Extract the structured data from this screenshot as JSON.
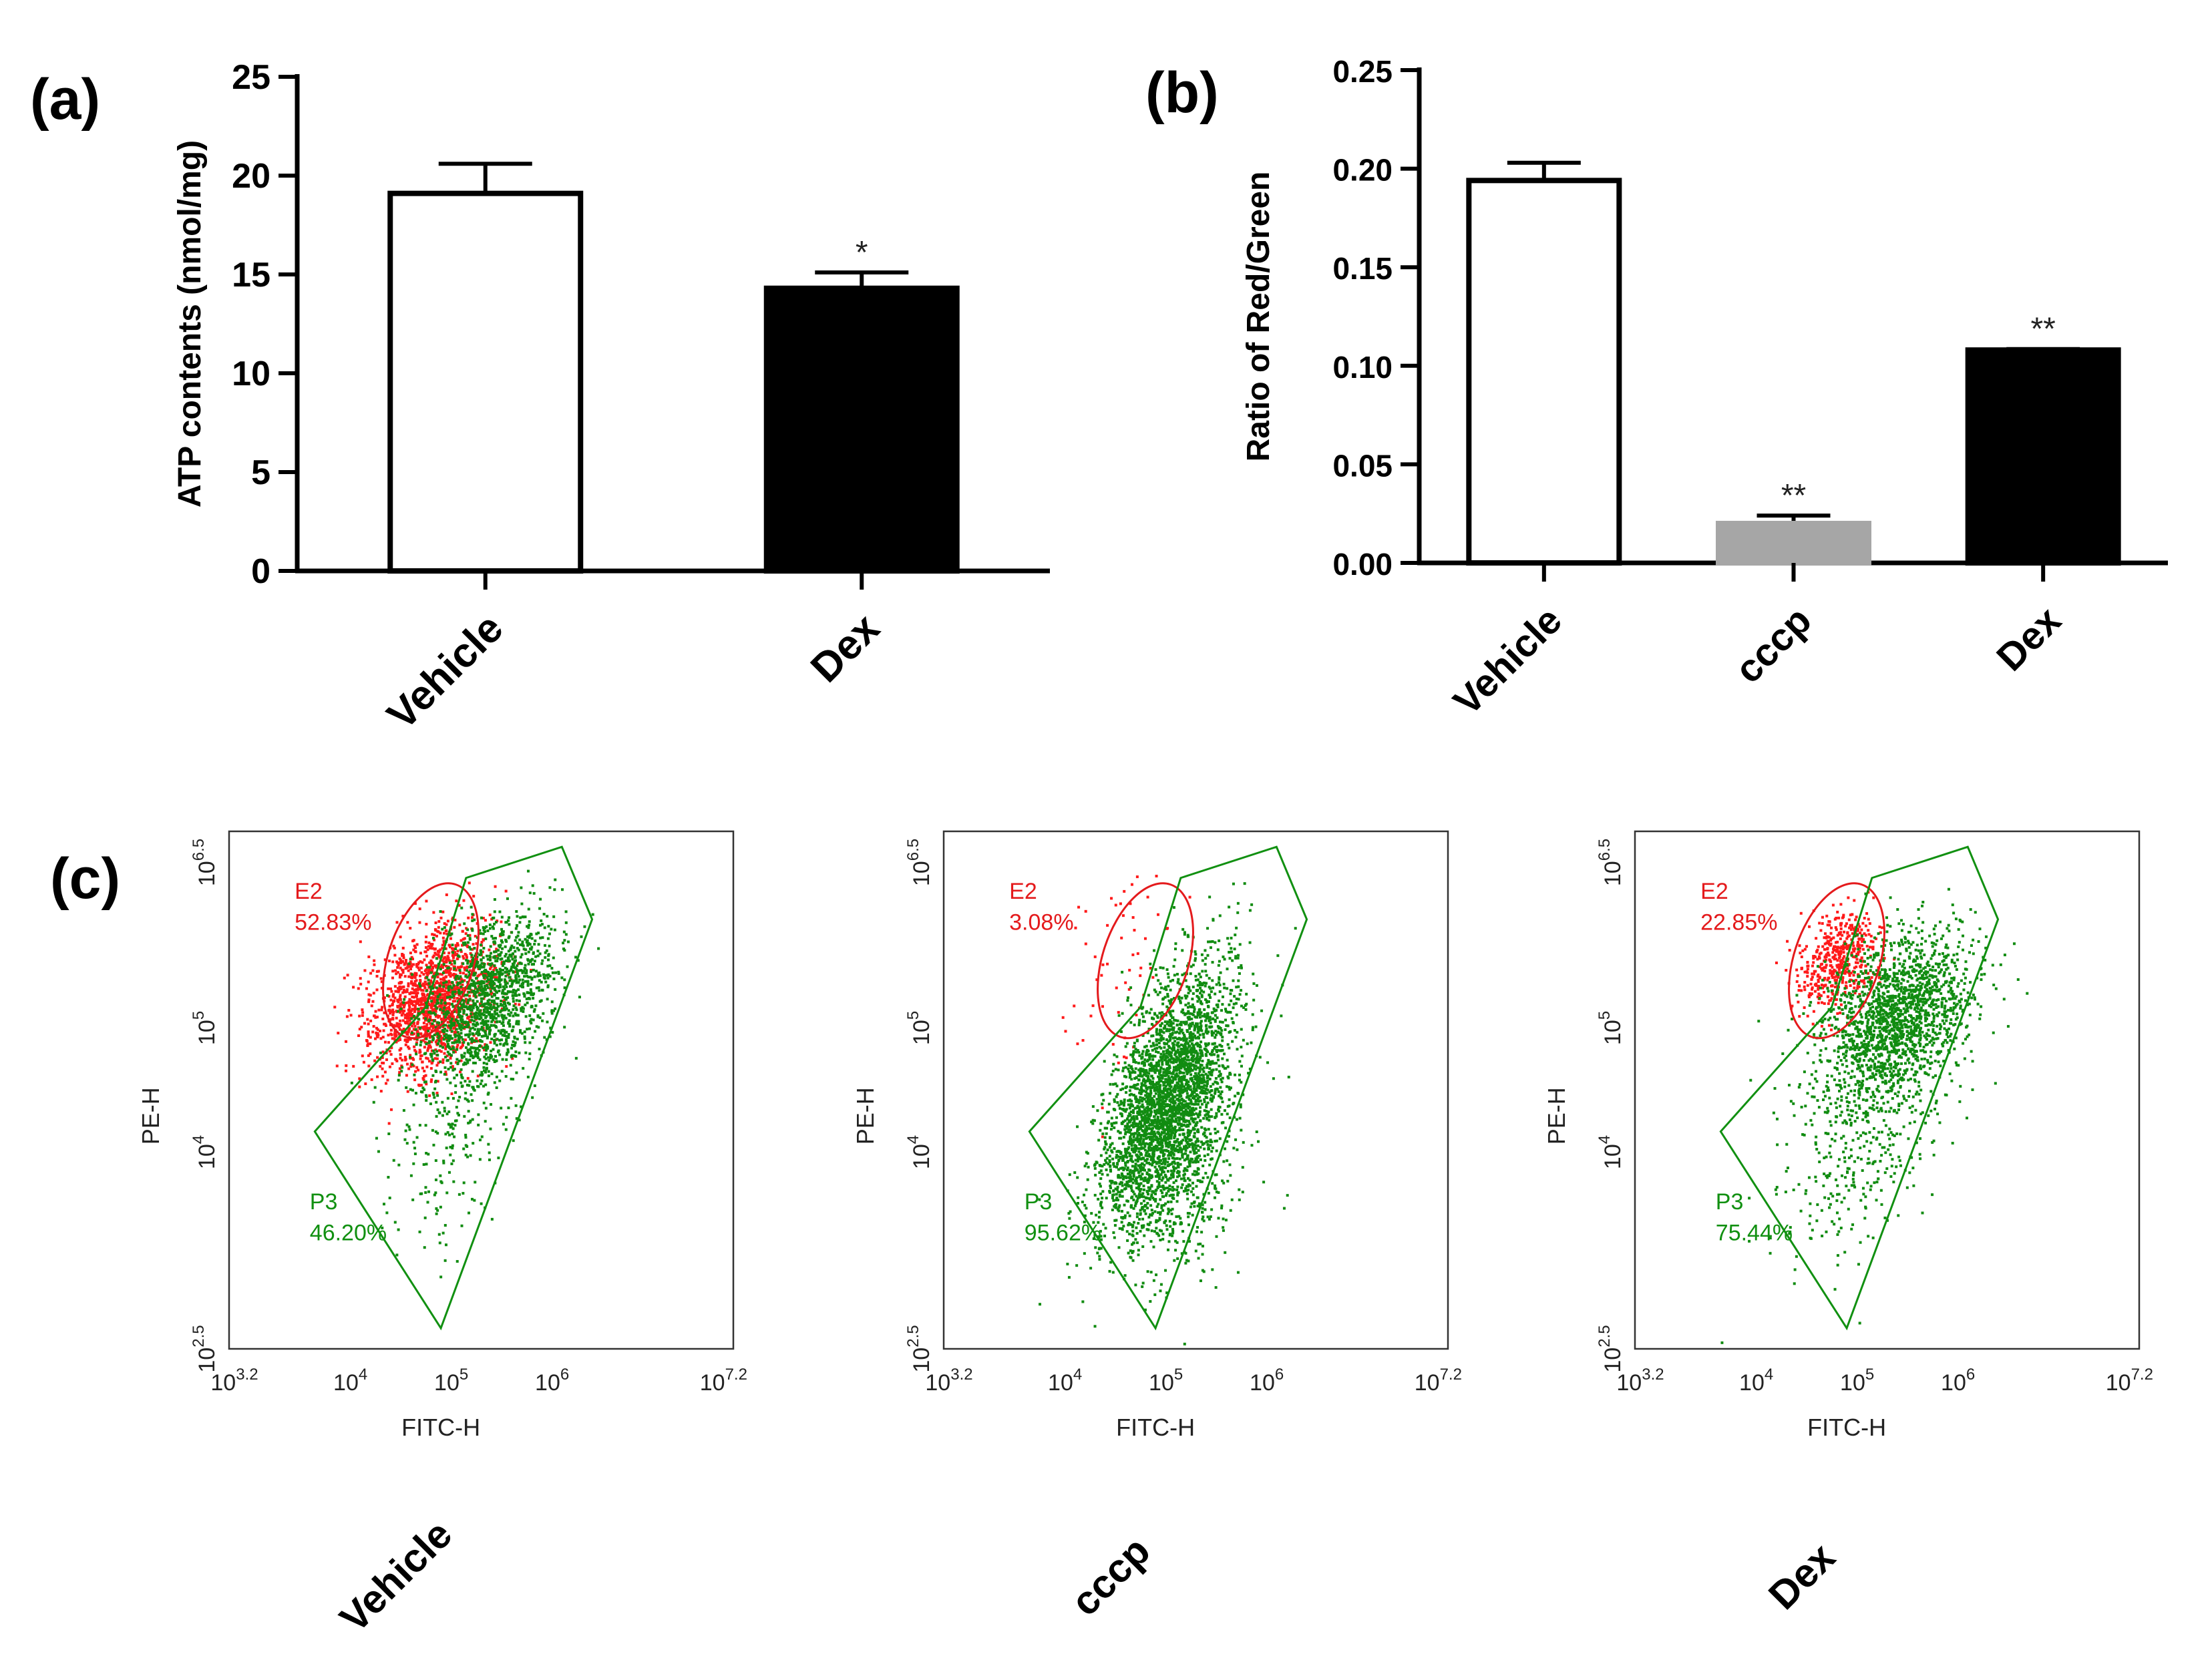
{
  "panel_labels": {
    "a": "(a)",
    "b": "(b)",
    "c": "(c)"
  },
  "chart_data": [
    {
      "type": "bar",
      "panel": "(a)",
      "title": "",
      "ylabel": "ATP contents (nmol/mg)",
      "xlabel": "",
      "ylim": [
        0,
        25
      ],
      "yticks": [
        "0",
        "5",
        "10",
        "15",
        "20",
        "25"
      ],
      "categories": [
        "Vehicle",
        "Dex"
      ],
      "values": [
        19.1,
        14.3
      ],
      "errors": [
        1.5,
        0.8
      ],
      "fills": [
        "#ffffff",
        "#000000"
      ],
      "significance": [
        "",
        "*"
      ]
    },
    {
      "type": "bar",
      "panel": "(b)",
      "title": "",
      "ylabel": "Ratio of Red/Green",
      "xlabel": "",
      "ylim": [
        0,
        0.25
      ],
      "yticks": [
        "0.00",
        "0.05",
        "0.10",
        "0.15",
        "0.20",
        "0.25"
      ],
      "categories": [
        "Vehicle",
        "cccp",
        "Dex"
      ],
      "values": [
        0.194,
        0.02,
        0.108
      ],
      "errors": [
        0.009,
        0.004,
        0.0005
      ],
      "fills": [
        "#ffffff",
        "#a6a6a6",
        "#000000"
      ],
      "significance": [
        "",
        "**",
        "**"
      ]
    },
    {
      "type": "scatter",
      "panel": "(c)",
      "subplots": [
        {
          "name": "Vehicle",
          "xlabel": "FITC-H",
          "ylabel": "PE-H",
          "gates": [
            {
              "name": "E2",
              "percent": "52.83%",
              "color": "#e41a1c"
            },
            {
              "name": "P3",
              "percent": "46.20%",
              "color": "#119011"
            }
          ]
        },
        {
          "name": "cccp",
          "xlabel": "FITC-H",
          "ylabel": "PE-H",
          "gates": [
            {
              "name": "E2",
              "percent": "3.08%",
              "color": "#e41a1c"
            },
            {
              "name": "P3",
              "percent": "95.62%",
              "color": "#119011"
            }
          ]
        },
        {
          "name": "Dex",
          "xlabel": "FITC-H",
          "ylabel": "PE-H",
          "gates": [
            {
              "name": "E2",
              "percent": "22.85%",
              "color": "#e41a1c"
            },
            {
              "name": "P3",
              "percent": "75.44%",
              "color": "#119011"
            }
          ]
        }
      ],
      "x_axis_log_ticks": [
        {
          "base": "10",
          "exp": "3.2"
        },
        {
          "base": "10",
          "exp": "4"
        },
        {
          "base": "10",
          "exp": "5"
        },
        {
          "base": "10",
          "exp": "6"
        },
        {
          "base": "10",
          "exp": "7.2"
        }
      ],
      "y_axis_log_ticks": [
        {
          "base": "10",
          "exp": "2.5"
        },
        {
          "base": "10",
          "exp": "4"
        },
        {
          "base": "10",
          "exp": "5"
        },
        {
          "base": "10",
          "exp": "6.5"
        }
      ]
    }
  ]
}
